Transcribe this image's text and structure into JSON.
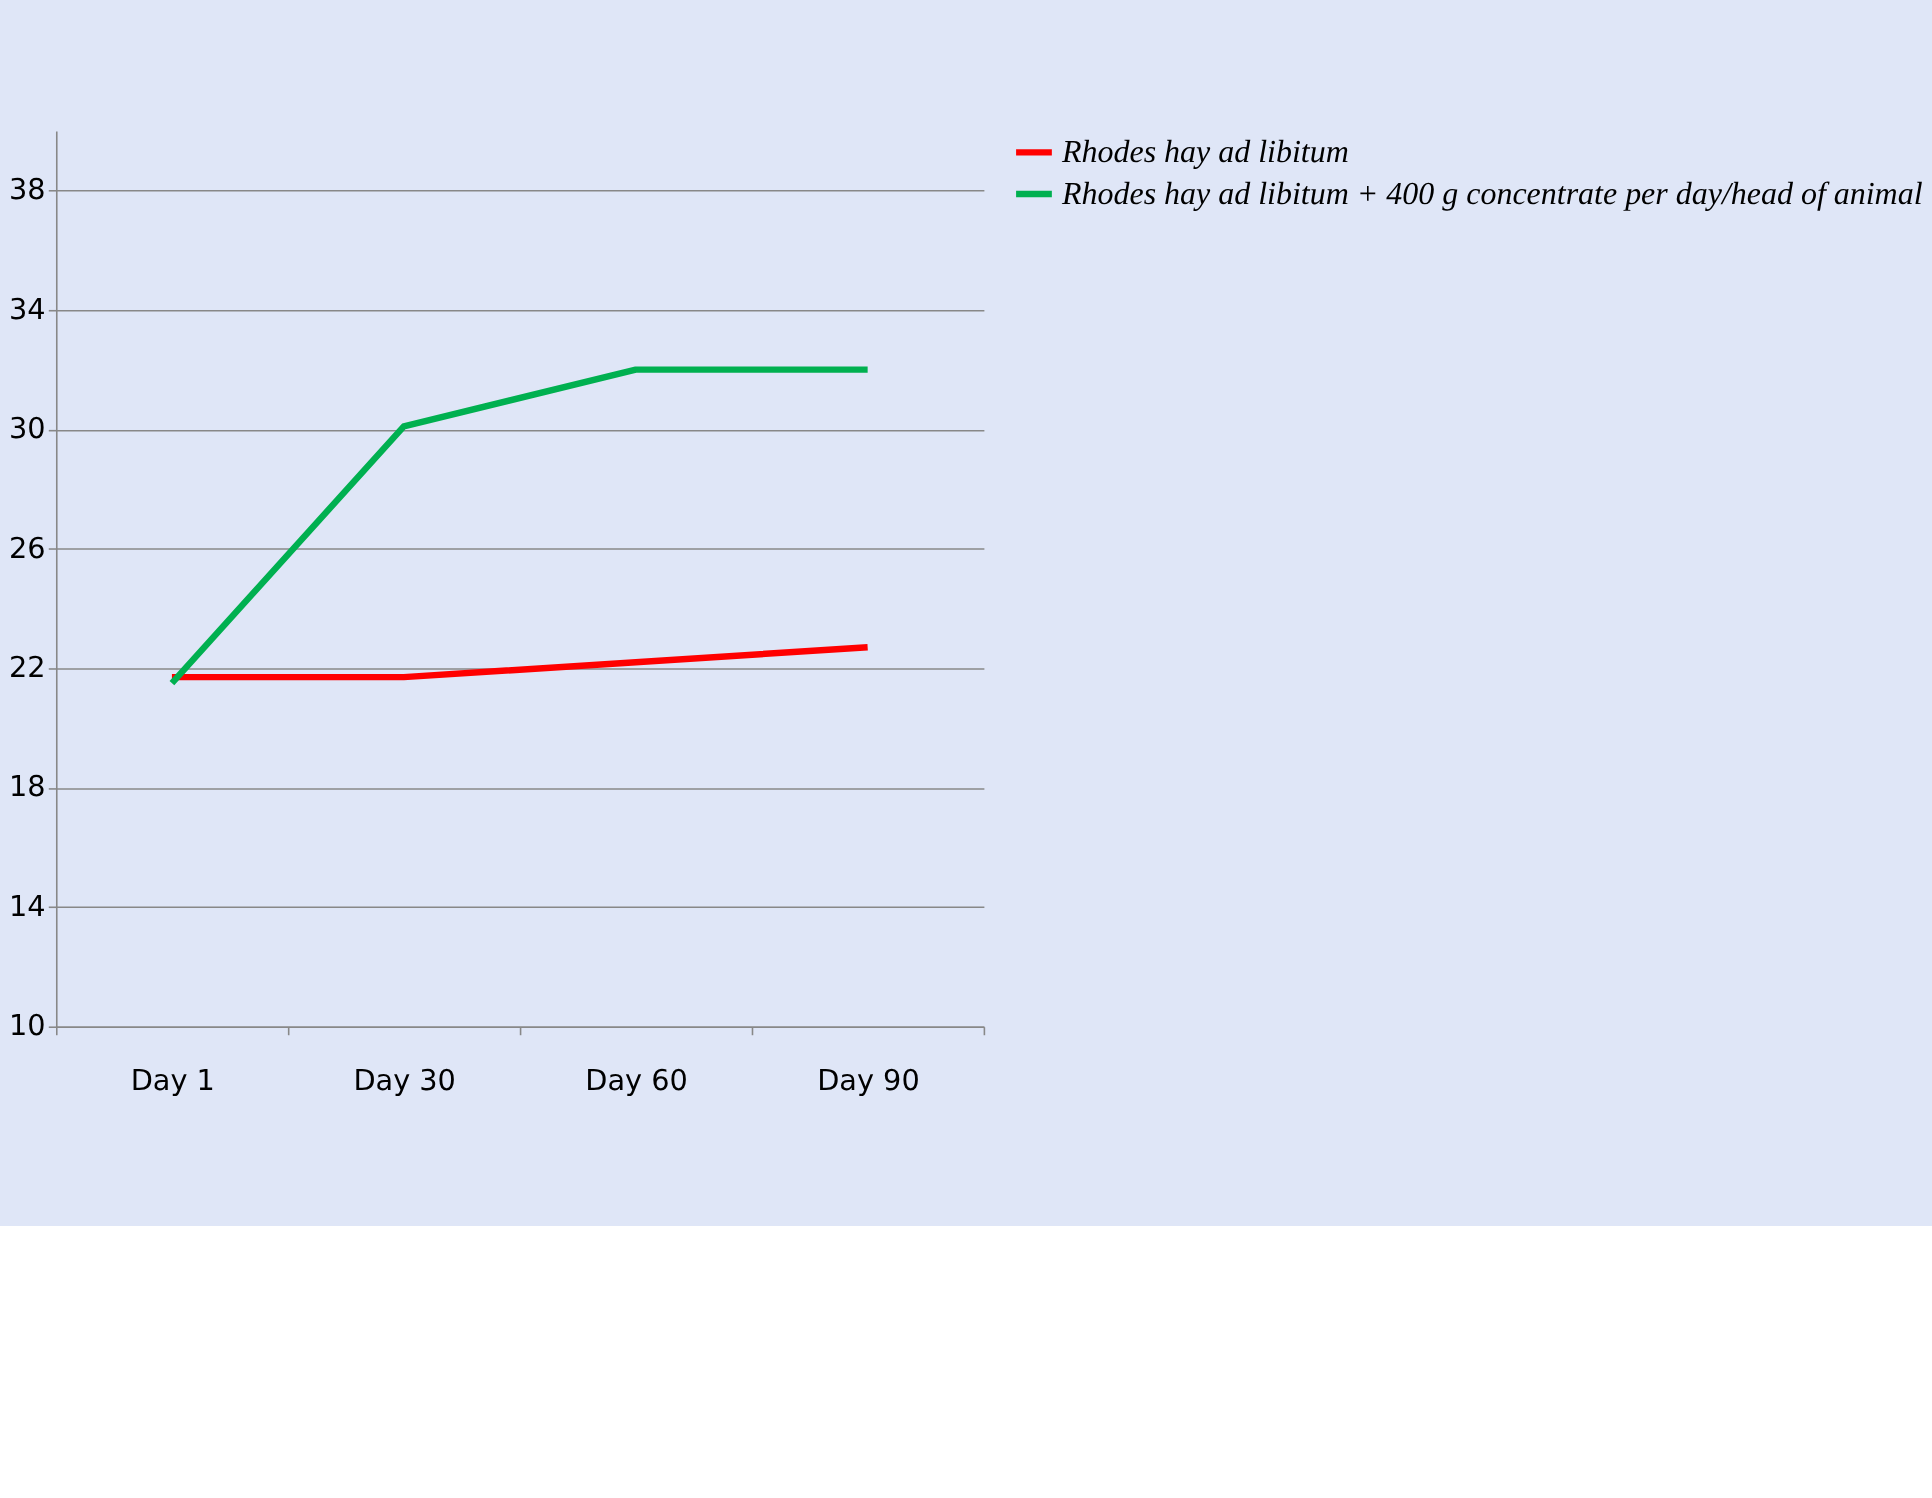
{
  "chart_data": {
    "type": "line",
    "categories": [
      "Day 1",
      "Day 30",
      "Day 60",
      "Day 90"
    ],
    "series": [
      {
        "name": "Rhodes hay ad libitum",
        "color": "#ff0000",
        "values": [
          21.7,
          21.7,
          22.2,
          22.7
        ]
      },
      {
        "name": "Rhodes hay ad libitum + 400 g concentrate per day/head of animal",
        "color": "#00b050",
        "values": [
          21.5,
          30.1,
          32.0,
          32.0
        ]
      }
    ],
    "ylim": [
      10,
      40
    ],
    "yticks": [
      10,
      14,
      18,
      22,
      26,
      30,
      34,
      38
    ],
    "grid": "y",
    "legend": "right",
    "marker": "none",
    "line_style": "solid"
  }
}
